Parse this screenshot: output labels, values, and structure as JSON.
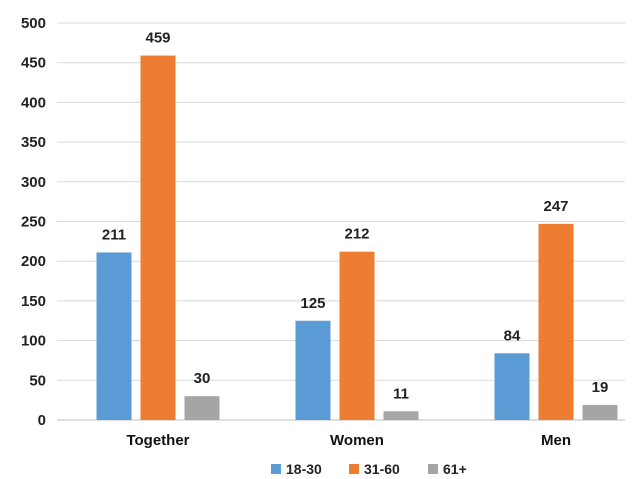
{
  "chart_data": {
    "type": "bar",
    "categories": [
      "Together",
      "Women",
      "Men"
    ],
    "series": [
      {
        "name": "18-30",
        "values": [
          211,
          125,
          84
        ]
      },
      {
        "name": "31-60",
        "values": [
          459,
          212,
          247
        ]
      },
      {
        "name": "61+",
        "values": [
          30,
          11,
          19
        ]
      }
    ],
    "colors": [
      "#5b9bd5",
      "#ed7d31",
      "#a5a5a5"
    ],
    "y_ticks": [
      0,
      50,
      100,
      150,
      200,
      250,
      300,
      350,
      400,
      450,
      500
    ],
    "ylim": [
      0,
      500
    ],
    "grid": true,
    "legend_position": "bottom",
    "data_labels": true
  }
}
